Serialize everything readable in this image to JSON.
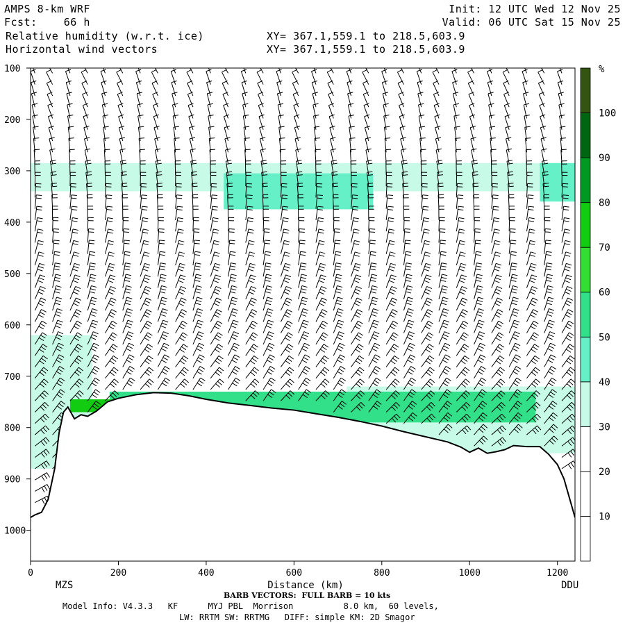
{
  "header": {
    "model_line1": "AMPS 8-km WRF",
    "fcst_label": "Fcst:",
    "fcst_value": "66 h",
    "field1": "Relative humidity (w.r.t. ice)",
    "field2": "Horizontal wind vectors",
    "init_label": "Init:",
    "init_value": "12 UTC Wed 12 Nov 25",
    "valid_label": "Valid:",
    "valid_value": "06 UTC Sat 15 Nov 25",
    "xy1": "XY= 367.1,559.1 to 218.5,603.9",
    "xy2": "XY= 367.1,559.1 to 218.5,603.9"
  },
  "footer": {
    "barb_note": "BARB VECTORS:  FULL BARB = 10 kts",
    "model_info": "Model Info: V4.3.3   KF      MYJ PBL  Morrison          8.0 km,  60 levels,",
    "physics": "LW: RRTM SW: RRTMG   DIFF: simple KM: 2D Smagor"
  },
  "chart_data": {
    "type": "heatmap",
    "xlabel": "Distance (km)",
    "ylabel": "",
    "xlim": [
      0,
      1240
    ],
    "ylim": [
      1060,
      100
    ],
    "x_ticks": [
      0,
      200,
      400,
      600,
      800,
      1000,
      1200
    ],
    "y_ticks": [
      100,
      200,
      300,
      400,
      500,
      600,
      700,
      800,
      900,
      1000
    ],
    "x_endpoints": {
      "left": "MZS",
      "right": "DDU"
    },
    "colorbar": {
      "unit": "%",
      "levels": [
        10,
        20,
        30,
        40,
        50,
        60,
        70,
        80,
        90,
        100
      ],
      "colors": [
        "#ffffff",
        "#ffffff",
        "#ffffff",
        "#c8fae8",
        "#66f0c8",
        "#33e08a",
        "#33dd33",
        "#11cc11",
        "#009922",
        "#006611",
        "#335511"
      ]
    },
    "colors": {
      "rh_30_40": "#c8fae8",
      "rh_40_50": "#66f0c8",
      "rh_50_60": "#33e08a",
      "rh_60_70": "#33dd33",
      "rh_70_80": "#11cc11",
      "rh_80_90": "#009922",
      "rh_90_100": "#006611",
      "rh_100": "#335511",
      "terrain_line": "#000000"
    },
    "terrain_surface_pressure": {
      "x": [
        0,
        10,
        25,
        40,
        55,
        65,
        75,
        85,
        100,
        115,
        130,
        150,
        175,
        200,
        240,
        280,
        320,
        360,
        400,
        450,
        500,
        550,
        600,
        650,
        700,
        750,
        800,
        850,
        900,
        950,
        980,
        1000,
        1020,
        1040,
        1060,
        1080,
        1100,
        1130,
        1160,
        1180,
        1200,
        1215,
        1230,
        1240
      ],
      "p": [
        975,
        970,
        965,
        940,
        880,
        810,
        770,
        760,
        783,
        775,
        778,
        768,
        750,
        743,
        736,
        732,
        733,
        738,
        745,
        752,
        757,
        762,
        766,
        773,
        780,
        788,
        797,
        808,
        818,
        828,
        838,
        848,
        840,
        850,
        847,
        843,
        835,
        837,
        837,
        852,
        872,
        900,
        945,
        975
      ]
    },
    "rh_regions": [
      {
        "band": "30-40",
        "x": [
          0,
          140
        ],
        "p": [
          620,
          880
        ]
      },
      {
        "band": "30-40",
        "x": [
          0,
          1240
        ],
        "p": [
          285,
          340
        ]
      },
      {
        "band": "40-50",
        "x": [
          440,
          780
        ],
        "p": [
          305,
          375
        ]
      },
      {
        "band": "40-50",
        "x": [
          1160,
          1240
        ],
        "p": [
          285,
          360
        ]
      },
      {
        "band": "30-40",
        "x": [
          720,
          1240
        ],
        "p": [
          720,
          850
        ]
      },
      {
        "band": "50-60",
        "x": [
          180,
          1150
        ],
        "p": [
          730,
          790
        ]
      },
      {
        "band": "70-80",
        "x": [
          90,
          400
        ],
        "p": [
          745,
          770
        ]
      }
    ],
    "wind_barbs": "Barbs drawn on a regular grid; full barb = 10 kts"
  }
}
